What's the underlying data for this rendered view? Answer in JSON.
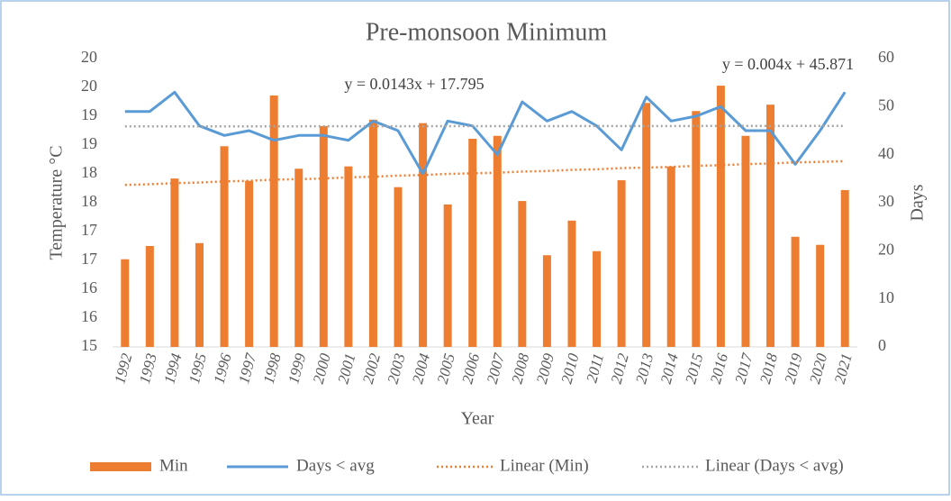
{
  "chart_data": {
    "type": "bar",
    "title": "Pre-monsoon  Minimum",
    "x_label": "Year",
    "y_label": "Temperature °C",
    "y2_label": "Days",
    "categories": [
      "1992",
      "1993",
      "1994",
      "1995",
      "1996",
      "1997",
      "1998",
      "1999",
      "2000",
      "2001",
      "2002",
      "2003",
      "2004",
      "2005",
      "2006",
      "2007",
      "2008",
      "2009",
      "2010",
      "2011",
      "2012",
      "2013",
      "2014",
      "2015",
      "2016",
      "2017",
      "2018",
      "2019",
      "2020",
      "2021"
    ],
    "ylim": [
      15,
      20
    ],
    "yticks": [
      15,
      {
        "value": 15.5,
        "label": "16"
      },
      16,
      {
        "value": 16.5,
        "label": "17"
      },
      17,
      {
        "value": 17.5,
        "label": "18"
      },
      18,
      {
        "value": 18.5,
        "label": "19"
      },
      19,
      {
        "value": 19.5,
        "label": "20"
      },
      20
    ],
    "y2lim": [
      0,
      60
    ],
    "y2ticks": [
      0,
      10,
      20,
      30,
      40,
      50,
      60
    ],
    "grid": false,
    "legend": "bottom",
    "series": [
      {
        "name": "Min",
        "type": "bar",
        "color": "#ed7d31",
        "values": [
          16.52,
          16.75,
          17.92,
          16.8,
          18.48,
          17.88,
          19.36,
          18.09,
          18.83,
          18.13,
          18.94,
          17.77,
          18.88,
          17.47,
          18.61,
          18.66,
          17.53,
          16.59,
          17.19,
          16.66,
          17.89,
          19.23,
          18.13,
          19.09,
          19.53,
          18.66,
          19.2,
          16.91,
          16.77,
          17.72
        ]
      },
      {
        "name": "Days < avg",
        "type": "line",
        "axis": "y2",
        "color": "#5b9bd5",
        "values": [
          49,
          49,
          53,
          46,
          44,
          45,
          43,
          44,
          44,
          43,
          47,
          45,
          36,
          47,
          46,
          40,
          51,
          47,
          49,
          46,
          41,
          52,
          47,
          48,
          50,
          45,
          45,
          38,
          45,
          53
        ]
      },
      {
        "name": "Linear (Min)",
        "type": "trend",
        "color": "#ed7d31",
        "equation": "y = 0.0143x + 17.795",
        "values": [
          17.81,
          17.82,
          17.84,
          17.85,
          17.87,
          17.88,
          17.9,
          17.91,
          17.92,
          17.94,
          17.95,
          17.97,
          17.98,
          18.0,
          18.01,
          18.02,
          18.04,
          18.05,
          18.07,
          18.08,
          18.1,
          18.11,
          18.12,
          18.14,
          18.15,
          18.17,
          18.18,
          18.2,
          18.21,
          18.22
        ]
      },
      {
        "name": "Linear (Days < avg)",
        "type": "trend",
        "axis": "y2",
        "color": "#a5a5a5",
        "equation": "y = 0.004x + 45.871",
        "values": [
          45.88,
          45.88,
          45.88,
          45.89,
          45.89,
          45.9,
          45.9,
          45.9,
          45.91,
          45.91,
          45.92,
          45.92,
          45.92,
          45.93,
          45.93,
          45.94,
          45.94,
          45.94,
          45.95,
          45.95,
          45.96,
          45.96,
          45.96,
          45.97,
          45.97,
          45.98,
          45.98,
          45.98,
          45.99,
          45.99
        ]
      }
    ]
  }
}
